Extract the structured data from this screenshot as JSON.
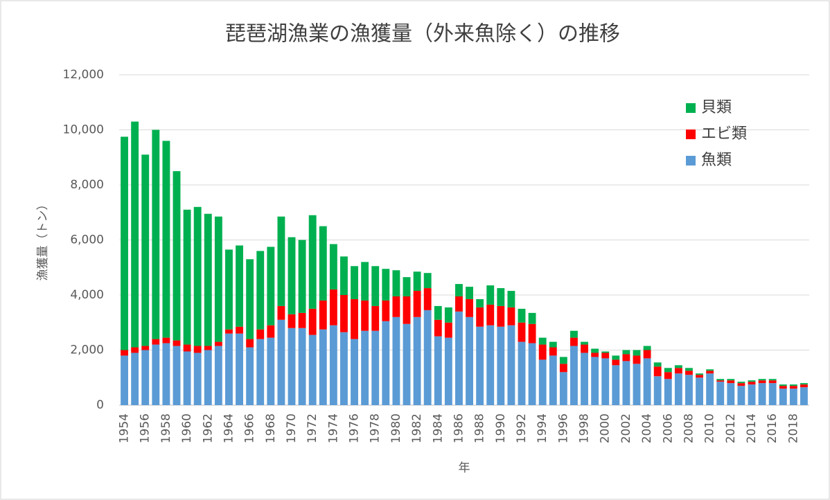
{
  "chart_data": {
    "type": "stacked_bar",
    "title": "琵琶湖漁業の漁獲量（外来魚除く）の推移",
    "x_label": "年",
    "y_label": "漁獲量（トン）",
    "categories": [
      "1954",
      null,
      "1956",
      null,
      "1958",
      null,
      "1960",
      null,
      "1962",
      null,
      "1964",
      null,
      "1966",
      null,
      "1968",
      null,
      "1970",
      null,
      "1972",
      null,
      "1974",
      null,
      "1976",
      null,
      "1978",
      null,
      "1980",
      null,
      "1982",
      null,
      "1984",
      null,
      "1986",
      null,
      "1988",
      null,
      "1990",
      null,
      "1992",
      null,
      "1994",
      null,
      "1996",
      null,
      "1998",
      null,
      "2000",
      null,
      "2002",
      null,
      "2004",
      null,
      "2006",
      null,
      "2008",
      null,
      "2010",
      null,
      "2012",
      null,
      "2014",
      null,
      "2016",
      null,
      "2018",
      null
    ],
    "series": [
      {
        "name": "魚類",
        "color": "#5b9bd5",
        "values": [
          1800,
          1900,
          2000,
          2200,
          2250,
          2150,
          1950,
          1900,
          2000,
          2150,
          2600,
          2600,
          2100,
          2400,
          2450,
          3100,
          2800,
          2800,
          2550,
          2750,
          2900,
          2650,
          2400,
          2700,
          2700,
          3050,
          3200,
          2950,
          3200,
          3450,
          2500,
          2450,
          3400,
          3200,
          2850,
          2900,
          2850,
          2900,
          2300,
          2250,
          1650,
          1800,
          1200,
          2150,
          1900,
          1750,
          1700,
          1450,
          1600,
          1500,
          1700,
          1050,
          950,
          1150,
          1100,
          1000,
          1150,
          850,
          800,
          700,
          750,
          800,
          800,
          600,
          600,
          650
        ]
      },
      {
        "name": "エビ類",
        "color": "#ff0000",
        "values": [
          200,
          200,
          150,
          200,
          200,
          200,
          250,
          250,
          150,
          150,
          150,
          250,
          300,
          350,
          450,
          500,
          500,
          550,
          950,
          1050,
          1300,
          1350,
          1450,
          1100,
          900,
          750,
          750,
          1000,
          950,
          800,
          600,
          550,
          550,
          650,
          700,
          750,
          750,
          650,
          700,
          700,
          550,
          300,
          300,
          300,
          300,
          150,
          200,
          200,
          250,
          300,
          300,
          350,
          250,
          200,
          150,
          100,
          100,
          50,
          100,
          100,
          100,
          100,
          100,
          100,
          100,
          100
        ]
      },
      {
        "name": "貝類",
        "color": "#00b050",
        "values": [
          7750,
          8200,
          6950,
          7600,
          7150,
          6150,
          4900,
          5050,
          4800,
          4550,
          2900,
          2950,
          2900,
          2850,
          2850,
          3250,
          2800,
          2650,
          3400,
          2700,
          1650,
          1400,
          1200,
          1400,
          1450,
          1150,
          950,
          700,
          700,
          550,
          500,
          550,
          450,
          450,
          300,
          700,
          650,
          600,
          500,
          400,
          250,
          200,
          250,
          250,
          100,
          150,
          50,
          150,
          150,
          200,
          150,
          150,
          150,
          100,
          100,
          50,
          50,
          50,
          50,
          50,
          50,
          50,
          50,
          50,
          50,
          50
        ]
      }
    ],
    "ylim": [
      0,
      12000
    ],
    "yticks": [
      0,
      {
        "value": 2000,
        "label": "2,000"
      },
      {
        "value": 4000,
        "label": "4,000"
      },
      {
        "value": 6000,
        "label": "6,000"
      },
      {
        "value": 8000,
        "label": "8,000"
      },
      {
        "value": 10000,
        "label": "10,000"
      },
      {
        "value": 12000,
        "label": "12,000"
      }
    ],
    "grid": true,
    "legend": "upper right"
  }
}
